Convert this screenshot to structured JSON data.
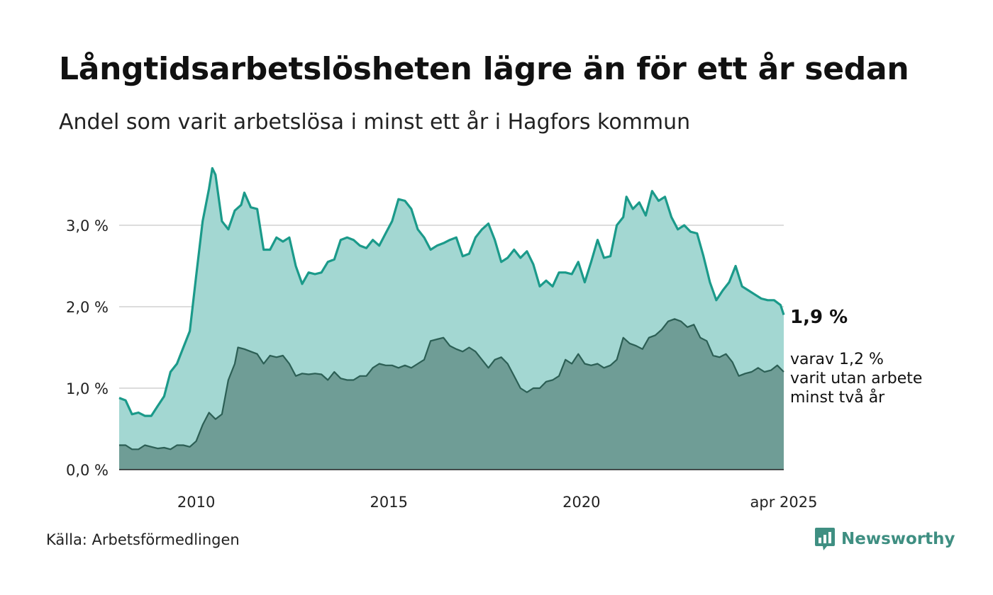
{
  "title": "Långtidsarbetslösheten lägre än för ett år sedan",
  "subtitle": "Andel som varit arbetslösa i minst ett år i Hagfors kommun",
  "source": "Källa: Arbetsförmedlingen",
  "logo_text": "Newsworthy",
  "annotation": {
    "main_value": "1,9 %",
    "sub_lines": [
      "varav 1,2 %",
      "varit utan arbete",
      "minst två år"
    ]
  },
  "colors": {
    "series1_line": "#1b9a8a",
    "series1_fill": "#a3d7d2",
    "series2_line": "#2c5f55",
    "series2_fill": "#6f9d96",
    "gridline": "#dcdcdc",
    "logo": "#3f8f82"
  },
  "chart_data": {
    "type": "area",
    "x_range": [
      "2008-01",
      "2025-04"
    ],
    "ylim": [
      0,
      3.7
    ],
    "yticks": [
      {
        "value": 0,
        "label": "0,0 %"
      },
      {
        "value": 1,
        "label": "1,0 %"
      },
      {
        "value": 2,
        "label": "2,0 %"
      },
      {
        "value": 3,
        "label": "3,0 %"
      }
    ],
    "xticks": [
      {
        "x": "2010-01",
        "label": "2010"
      },
      {
        "x": "2015-01",
        "label": "2015"
      },
      {
        "x": "2020-01",
        "label": "2020"
      },
      {
        "x": "2025-04",
        "label": "apr 2025"
      }
    ],
    "series": [
      {
        "points": [
          [
            "2008-01",
            0.88
          ],
          [
            "2008-03",
            0.85
          ],
          [
            "2008-05",
            0.68
          ],
          [
            "2008-07",
            0.7
          ],
          [
            "2008-09",
            0.66
          ],
          [
            "2008-11",
            0.66
          ],
          [
            "2009-01",
            0.78
          ],
          [
            "2009-03",
            0.9
          ],
          [
            "2009-05",
            1.2
          ],
          [
            "2009-07",
            1.3
          ],
          [
            "2009-09",
            1.5
          ],
          [
            "2009-11",
            1.7
          ],
          [
            "2010-01",
            2.38
          ],
          [
            "2010-03",
            3.05
          ],
          [
            "2010-05",
            3.45
          ],
          [
            "2010-06",
            3.7
          ],
          [
            "2010-07",
            3.62
          ],
          [
            "2010-09",
            3.05
          ],
          [
            "2010-11",
            2.95
          ],
          [
            "2011-01",
            3.18
          ],
          [
            "2011-03",
            3.25
          ],
          [
            "2011-04",
            3.4
          ],
          [
            "2011-06",
            3.22
          ],
          [
            "2011-08",
            3.2
          ],
          [
            "2011-10",
            2.7
          ],
          [
            "2011-12",
            2.7
          ],
          [
            "2012-02",
            2.85
          ],
          [
            "2012-04",
            2.8
          ],
          [
            "2012-06",
            2.85
          ],
          [
            "2012-08",
            2.5
          ],
          [
            "2012-10",
            2.28
          ],
          [
            "2012-12",
            2.42
          ],
          [
            "2013-02",
            2.4
          ],
          [
            "2013-04",
            2.42
          ],
          [
            "2013-06",
            2.55
          ],
          [
            "2013-08",
            2.58
          ],
          [
            "2013-10",
            2.82
          ],
          [
            "2013-12",
            2.85
          ],
          [
            "2014-02",
            2.82
          ],
          [
            "2014-04",
            2.75
          ],
          [
            "2014-06",
            2.72
          ],
          [
            "2014-08",
            2.82
          ],
          [
            "2014-10",
            2.75
          ],
          [
            "2014-12",
            2.9
          ],
          [
            "2015-02",
            3.05
          ],
          [
            "2015-04",
            3.32
          ],
          [
            "2015-06",
            3.3
          ],
          [
            "2015-08",
            3.2
          ],
          [
            "2015-10",
            2.95
          ],
          [
            "2015-12",
            2.85
          ],
          [
            "2016-02",
            2.7
          ],
          [
            "2016-04",
            2.75
          ],
          [
            "2016-06",
            2.78
          ],
          [
            "2016-08",
            2.82
          ],
          [
            "2016-10",
            2.85
          ],
          [
            "2016-12",
            2.62
          ],
          [
            "2017-02",
            2.65
          ],
          [
            "2017-04",
            2.85
          ],
          [
            "2017-06",
            2.95
          ],
          [
            "2017-08",
            3.02
          ],
          [
            "2017-10",
            2.82
          ],
          [
            "2017-12",
            2.55
          ],
          [
            "2018-02",
            2.6
          ],
          [
            "2018-04",
            2.7
          ],
          [
            "2018-06",
            2.6
          ],
          [
            "2018-08",
            2.68
          ],
          [
            "2018-10",
            2.52
          ],
          [
            "2018-12",
            2.25
          ],
          [
            "2019-02",
            2.32
          ],
          [
            "2019-04",
            2.25
          ],
          [
            "2019-06",
            2.42
          ],
          [
            "2019-08",
            2.42
          ],
          [
            "2019-10",
            2.4
          ],
          [
            "2019-12",
            2.55
          ],
          [
            "2020-02",
            2.3
          ],
          [
            "2020-04",
            2.55
          ],
          [
            "2020-06",
            2.82
          ],
          [
            "2020-08",
            2.6
          ],
          [
            "2020-10",
            2.62
          ],
          [
            "2020-12",
            3.0
          ],
          [
            "2021-02",
            3.1
          ],
          [
            "2021-03",
            3.35
          ],
          [
            "2021-05",
            3.2
          ],
          [
            "2021-07",
            3.28
          ],
          [
            "2021-09",
            3.12
          ],
          [
            "2021-11",
            3.42
          ],
          [
            "2022-01",
            3.3
          ],
          [
            "2022-03",
            3.35
          ],
          [
            "2022-05",
            3.1
          ],
          [
            "2022-07",
            2.95
          ],
          [
            "2022-09",
            3.0
          ],
          [
            "2022-11",
            2.92
          ],
          [
            "2023-01",
            2.9
          ],
          [
            "2023-03",
            2.62
          ],
          [
            "2023-05",
            2.3
          ],
          [
            "2023-07",
            2.08
          ],
          [
            "2023-09",
            2.2
          ],
          [
            "2023-11",
            2.3
          ],
          [
            "2024-01",
            2.5
          ],
          [
            "2024-03",
            2.25
          ],
          [
            "2024-05",
            2.2
          ],
          [
            "2024-07",
            2.15
          ],
          [
            "2024-09",
            2.1
          ],
          [
            "2024-11",
            2.08
          ],
          [
            "2025-01",
            2.08
          ],
          [
            "2025-03",
            2.02
          ],
          [
            "2025-04",
            1.9
          ]
        ]
      },
      {
        "points": [
          [
            "2008-01",
            0.3
          ],
          [
            "2008-03",
            0.3
          ],
          [
            "2008-05",
            0.25
          ],
          [
            "2008-07",
            0.25
          ],
          [
            "2008-09",
            0.3
          ],
          [
            "2008-11",
            0.28
          ],
          [
            "2009-01",
            0.26
          ],
          [
            "2009-03",
            0.27
          ],
          [
            "2009-05",
            0.25
          ],
          [
            "2009-07",
            0.3
          ],
          [
            "2009-09",
            0.3
          ],
          [
            "2009-11",
            0.28
          ],
          [
            "2010-01",
            0.35
          ],
          [
            "2010-03",
            0.55
          ],
          [
            "2010-05",
            0.7
          ],
          [
            "2010-07",
            0.62
          ],
          [
            "2010-09",
            0.68
          ],
          [
            "2010-11",
            1.1
          ],
          [
            "2011-01",
            1.3
          ],
          [
            "2011-02",
            1.5
          ],
          [
            "2011-04",
            1.48
          ],
          [
            "2011-06",
            1.45
          ],
          [
            "2011-08",
            1.42
          ],
          [
            "2011-10",
            1.3
          ],
          [
            "2011-12",
            1.4
          ],
          [
            "2012-02",
            1.38
          ],
          [
            "2012-04",
            1.4
          ],
          [
            "2012-06",
            1.3
          ],
          [
            "2012-08",
            1.15
          ],
          [
            "2012-10",
            1.18
          ],
          [
            "2012-12",
            1.17
          ],
          [
            "2013-02",
            1.18
          ],
          [
            "2013-04",
            1.17
          ],
          [
            "2013-06",
            1.1
          ],
          [
            "2013-08",
            1.2
          ],
          [
            "2013-10",
            1.12
          ],
          [
            "2013-12",
            1.1
          ],
          [
            "2014-02",
            1.1
          ],
          [
            "2014-04",
            1.15
          ],
          [
            "2014-06",
            1.15
          ],
          [
            "2014-08",
            1.25
          ],
          [
            "2014-10",
            1.3
          ],
          [
            "2014-12",
            1.28
          ],
          [
            "2015-02",
            1.28
          ],
          [
            "2015-04",
            1.25
          ],
          [
            "2015-06",
            1.28
          ],
          [
            "2015-08",
            1.25
          ],
          [
            "2015-10",
            1.3
          ],
          [
            "2015-12",
            1.35
          ],
          [
            "2016-02",
            1.58
          ],
          [
            "2016-04",
            1.6
          ],
          [
            "2016-06",
            1.62
          ],
          [
            "2016-08",
            1.52
          ],
          [
            "2016-10",
            1.48
          ],
          [
            "2016-12",
            1.45
          ],
          [
            "2017-02",
            1.5
          ],
          [
            "2017-04",
            1.45
          ],
          [
            "2017-06",
            1.35
          ],
          [
            "2017-08",
            1.25
          ],
          [
            "2017-10",
            1.35
          ],
          [
            "2017-12",
            1.38
          ],
          [
            "2018-02",
            1.3
          ],
          [
            "2018-04",
            1.15
          ],
          [
            "2018-06",
            1.0
          ],
          [
            "2018-08",
            0.95
          ],
          [
            "2018-10",
            1.0
          ],
          [
            "2018-12",
            1.0
          ],
          [
            "2019-02",
            1.08
          ],
          [
            "2019-04",
            1.1
          ],
          [
            "2019-06",
            1.15
          ],
          [
            "2019-08",
            1.35
          ],
          [
            "2019-10",
            1.3
          ],
          [
            "2019-12",
            1.42
          ],
          [
            "2020-02",
            1.3
          ],
          [
            "2020-04",
            1.28
          ],
          [
            "2020-06",
            1.3
          ],
          [
            "2020-08",
            1.25
          ],
          [
            "2020-10",
            1.28
          ],
          [
            "2020-12",
            1.35
          ],
          [
            "2021-02",
            1.62
          ],
          [
            "2021-04",
            1.55
          ],
          [
            "2021-06",
            1.52
          ],
          [
            "2021-08",
            1.48
          ],
          [
            "2021-10",
            1.62
          ],
          [
            "2021-12",
            1.65
          ],
          [
            "2022-02",
            1.72
          ],
          [
            "2022-04",
            1.82
          ],
          [
            "2022-06",
            1.85
          ],
          [
            "2022-08",
            1.82
          ],
          [
            "2022-10",
            1.75
          ],
          [
            "2022-12",
            1.78
          ],
          [
            "2023-02",
            1.62
          ],
          [
            "2023-04",
            1.58
          ],
          [
            "2023-06",
            1.4
          ],
          [
            "2023-08",
            1.38
          ],
          [
            "2023-10",
            1.42
          ],
          [
            "2023-12",
            1.32
          ],
          [
            "2024-02",
            1.15
          ],
          [
            "2024-04",
            1.18
          ],
          [
            "2024-06",
            1.2
          ],
          [
            "2024-08",
            1.25
          ],
          [
            "2024-10",
            1.2
          ],
          [
            "2024-12",
            1.22
          ],
          [
            "2025-02",
            1.28
          ],
          [
            "2025-04",
            1.2
          ]
        ]
      }
    ]
  }
}
